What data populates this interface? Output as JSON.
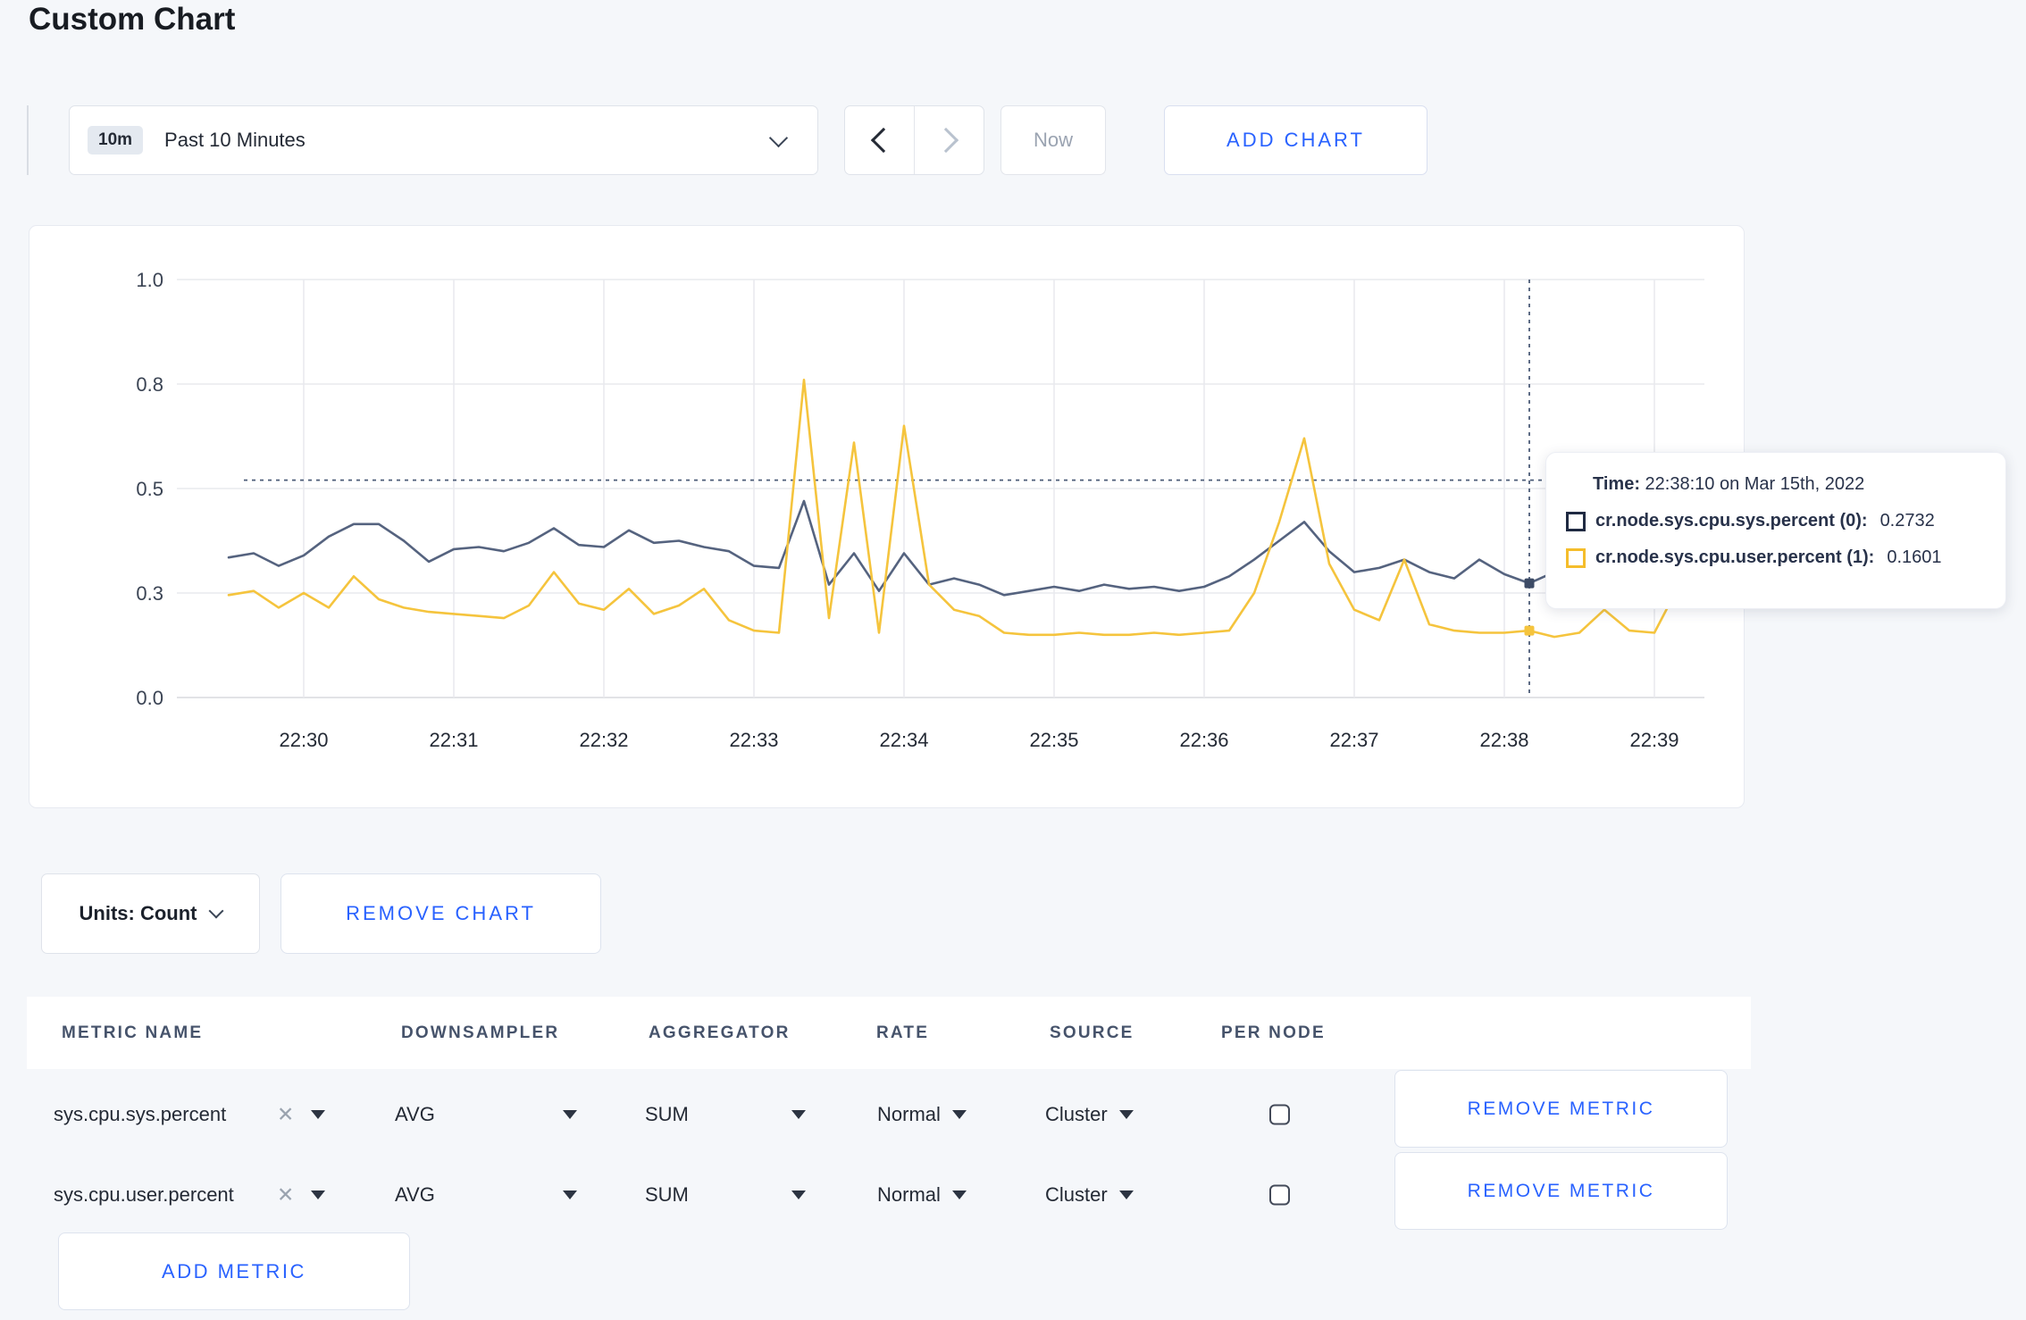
{
  "page": {
    "title": "Custom Chart",
    "background": "#f5f7fa",
    "accent_blue": "#2962ff"
  },
  "toolbar": {
    "time_badge": "10m",
    "time_label": "Past 10 Minutes",
    "now": "Now",
    "add_chart": "ADD CHART"
  },
  "chart_footer": {
    "units": "Units: Count",
    "remove_chart": "REMOVE CHART"
  },
  "tooltip": {
    "time_label": "Time:",
    "time_value": "22:38:10 on Mar 15th, 2022",
    "series": [
      {
        "label": "cr.node.sys.cpu.sys.percent (0):",
        "value": "0.2732",
        "color": "#1f2a42"
      },
      {
        "label": "cr.node.sys.cpu.user.percent (1):",
        "value": "0.1601",
        "color": "#f5bd2b"
      }
    ]
  },
  "chart_data": {
    "type": "line",
    "title": "",
    "xlabel": "",
    "ylabel": "",
    "grid": true,
    "legend_position": "tooltip",
    "x_axis": {
      "tick_labels": [
        "22:30",
        "22:31",
        "22:32",
        "22:33",
        "22:34",
        "22:35",
        "22:36",
        "22:37",
        "22:38",
        "22:39"
      ],
      "start": "22:29:30",
      "end": "22:39:20"
    },
    "y_axis": {
      "range": [
        0,
        1.0
      ],
      "ticks": [
        {
          "label": "0.0",
          "value": 0
        },
        {
          "label": "0.3",
          "value": 0.25
        },
        {
          "label": "0.5",
          "value": 0.5
        },
        {
          "label": "0.8",
          "value": 0.75
        },
        {
          "label": "1.0",
          "value": 1.0
        }
      ]
    },
    "start_offset_sec": -30,
    "sample_interval_sec": 10,
    "series": [
      {
        "name": "cr.node.sys.cpu.sys.percent",
        "color": "#55637f",
        "values": [
          0.335,
          0.345,
          0.315,
          0.34,
          0.385,
          0.415,
          0.415,
          0.375,
          0.325,
          0.355,
          0.36,
          0.35,
          0.37,
          0.405,
          0.365,
          0.36,
          0.4,
          0.37,
          0.375,
          0.36,
          0.35,
          0.315,
          0.31,
          0.47,
          0.27,
          0.345,
          0.255,
          0.345,
          0.27,
          0.285,
          0.27,
          0.245,
          0.255,
          0.265,
          0.255,
          0.27,
          0.26,
          0.265,
          0.255,
          0.265,
          0.29,
          0.33,
          0.375,
          0.42,
          0.35,
          0.3,
          0.31,
          0.33,
          0.3,
          0.285,
          0.33,
          0.295,
          0.2732,
          0.3,
          0.315,
          0.28,
          0.265,
          0.285,
          0.305,
          0.29
        ]
      },
      {
        "name": "cr.node.sys.cpu.user.percent",
        "color": "#f5c43d",
        "values": [
          0.245,
          0.255,
          0.215,
          0.25,
          0.215,
          0.29,
          0.235,
          0.215,
          0.205,
          0.2,
          0.195,
          0.19,
          0.22,
          0.3,
          0.225,
          0.21,
          0.26,
          0.2,
          0.22,
          0.26,
          0.185,
          0.16,
          0.155,
          0.76,
          0.19,
          0.61,
          0.155,
          0.65,
          0.27,
          0.21,
          0.195,
          0.155,
          0.15,
          0.15,
          0.155,
          0.15,
          0.15,
          0.155,
          0.15,
          0.155,
          0.16,
          0.25,
          0.42,
          0.62,
          0.32,
          0.21,
          0.185,
          0.33,
          0.175,
          0.16,
          0.155,
          0.155,
          0.1601,
          0.145,
          0.155,
          0.21,
          0.16,
          0.155,
          0.27,
          0.215
        ]
      }
    ],
    "crosshair": {
      "time": "22:38:10",
      "offset_sec": 490,
      "guide_value": 0.52,
      "points": [
        {
          "series": 0,
          "value": 0.2732
        },
        {
          "series": 1,
          "value": 0.1601
        }
      ]
    },
    "colors": {
      "grid": "#e9eaee",
      "axis": "#d8dade",
      "crosshair": "#4c5c78",
      "tick_text": "#3b4454",
      "x_tick_text": "#242a35"
    }
  },
  "table": {
    "headers": [
      "METRIC NAME",
      "DOWNSAMPLER",
      "AGGREGATOR",
      "RATE",
      "SOURCE",
      "PER NODE"
    ],
    "rows": [
      {
        "metric": "sys.cpu.sys.percent",
        "downsampler": "AVG",
        "aggregator": "SUM",
        "rate": "Normal",
        "source": "Cluster",
        "per_node_checked": false,
        "remove": "REMOVE METRIC"
      },
      {
        "metric": "sys.cpu.user.percent",
        "downsampler": "AVG",
        "aggregator": "SUM",
        "rate": "Normal",
        "source": "Cluster",
        "per_node_checked": false,
        "remove": "REMOVE METRIC"
      }
    ],
    "add_metric": "ADD METRIC"
  },
  "icons": {
    "close_x": "✕"
  }
}
